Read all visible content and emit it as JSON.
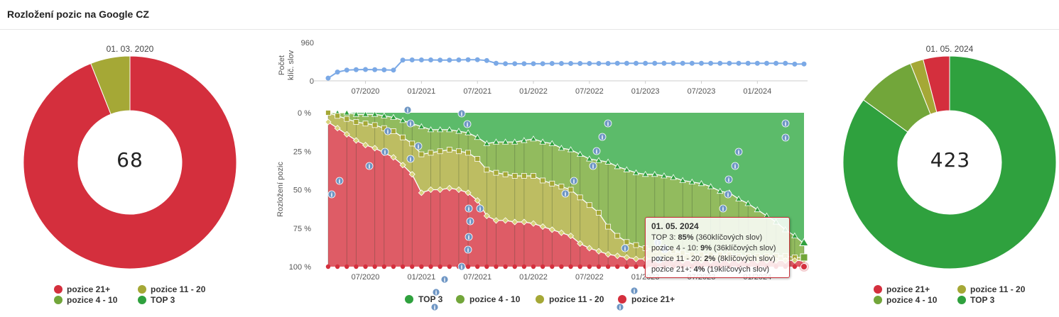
{
  "title": "Rozložení pozic na Google CZ",
  "colors": {
    "top3": "#2fa13e",
    "pos4_10": "#72a63a",
    "pos11_20": "#a5a836",
    "pos21": "#d42f3d",
    "line": "#7ba9e6",
    "info": "#6e96c4"
  },
  "left_donut": {
    "date": "01. 03. 2020",
    "total": "68",
    "legend": [
      {
        "label": "pozice 21+",
        "color": "#d42f3d"
      },
      {
        "label": "pozice 11 - 20",
        "color": "#a5a836"
      },
      {
        "label": "pozice 4 - 10",
        "color": "#72a63a"
      },
      {
        "label": "TOP 3",
        "color": "#2fa13e"
      }
    ]
  },
  "right_donut": {
    "date": "01. 05. 2024",
    "total": "423",
    "legend": [
      {
        "label": "pozice 21+",
        "color": "#d42f3d"
      },
      {
        "label": "pozice 11 - 20",
        "color": "#a5a836"
      },
      {
        "label": "pozice 4 - 10",
        "color": "#72a63a"
      },
      {
        "label": "TOP 3",
        "color": "#2fa13e"
      }
    ]
  },
  "main_legend": [
    {
      "label": "TOP 3",
      "color": "#2fa13e"
    },
    {
      "label": "pozice 4 - 10",
      "color": "#72a63a"
    },
    {
      "label": "pozice 11 - 20",
      "color": "#a5a836"
    },
    {
      "label": "pozice 21+",
      "color": "#d42f3d"
    }
  ],
  "tooltip": {
    "date": "01. 05. 2024",
    "lines": [
      {
        "prefix": "TOP 3: ",
        "value": "85%",
        "suffix": " (360klíčových slov)"
      },
      {
        "prefix": "pozice 4 - 10: ",
        "value": "9%",
        "suffix": " (36klíčových slov)"
      },
      {
        "prefix": "pozice 11 - 20: ",
        "value": "2%",
        "suffix": " (8klíčových slov)"
      },
      {
        "prefix": "pozice 21+: ",
        "value": "4%",
        "suffix": " (19klíčových slov)"
      }
    ]
  },
  "chart_data": [
    {
      "type": "pie",
      "name": "left",
      "categories": [
        "pozice 21+",
        "pozice 11 - 20",
        "pozice 4 - 10",
        "TOP 3"
      ],
      "values": [
        94,
        6,
        0,
        0
      ],
      "center_label": "68"
    },
    {
      "type": "pie",
      "name": "right",
      "categories": [
        "TOP 3",
        "pozice 4 - 10",
        "pozice 11 - 20",
        "pozice 21+"
      ],
      "values": [
        85,
        9,
        2,
        4
      ],
      "center_label": "423"
    },
    {
      "type": "line",
      "name": "keywords",
      "ylabel": "Počet klíč. slov",
      "ylim": [
        0,
        960
      ],
      "yticks": [
        "960",
        "0"
      ],
      "xticks": [
        "07/2020",
        "01/2021",
        "07/2021",
        "01/2022",
        "07/2022",
        "01/2023",
        "07/2023",
        "01/2024"
      ],
      "x_start": "2020-03",
      "x_end": "2024-05",
      "values": [
        68,
        220,
        270,
        280,
        285,
        280,
        275,
        270,
        520,
        525,
        525,
        525,
        520,
        520,
        525,
        530,
        530,
        510,
        440,
        430,
        430,
        430,
        430,
        430,
        435,
        435,
        435,
        435,
        435,
        435,
        435,
        440,
        440,
        440,
        440,
        440,
        440,
        440,
        440,
        440,
        440,
        440,
        440,
        440,
        440,
        440,
        440,
        440,
        440,
        440,
        420,
        423
      ]
    },
    {
      "type": "area",
      "name": "distribution",
      "ylabel": "Rozložení pozic",
      "yticks": [
        "0 %",
        "25 %",
        "50 %",
        "75 %",
        "100 %"
      ],
      "xticks": [
        "07/2020",
        "01/2021",
        "07/2021",
        "01/2022",
        "07/2022",
        "01/2023",
        "07/2023",
        "01/2024"
      ],
      "x_start": "2020-03",
      "x_end": "2024-05",
      "series": [
        {
          "name": "pozice 21+",
          "values": [
            94,
            90,
            86,
            82,
            79,
            77,
            74,
            71,
            66,
            60,
            48,
            50,
            50,
            51,
            50,
            48,
            43,
            33,
            30,
            30,
            29,
            29,
            28,
            26,
            24,
            22,
            20,
            15,
            12,
            10,
            8,
            7,
            6,
            5,
            5,
            5,
            5,
            5,
            4,
            4,
            4,
            4,
            4,
            4,
            4,
            4,
            4,
            4,
            4,
            4,
            4,
            4
          ]
        },
        {
          "name": "pozice 11 - 20",
          "values": [
            6,
            8,
            10,
            12,
            14,
            15,
            16,
            17,
            18,
            20,
            25,
            24,
            25,
            25,
            25,
            26,
            27,
            30,
            31,
            30,
            30,
            30,
            31,
            30,
            30,
            30,
            30,
            30,
            28,
            25,
            18,
            13,
            10,
            9,
            7,
            6,
            6,
            5,
            5,
            4,
            4,
            4,
            4,
            4,
            3,
            3,
            3,
            3,
            3,
            3,
            2,
            2
          ]
        },
        {
          "name": "pozice 4 - 10",
          "values": [
            0,
            2,
            4,
            5,
            6,
            7,
            8,
            9,
            11,
            13,
            18,
            15,
            14,
            13,
            13,
            13,
            14,
            17,
            20,
            21,
            22,
            23,
            24,
            25,
            26,
            25,
            26,
            28,
            30,
            34,
            42,
            45,
            47,
            47,
            48,
            49,
            48,
            48,
            47,
            47,
            46,
            44,
            41,
            40,
            37,
            34,
            30,
            26,
            22,
            17,
            14,
            9
          ]
        },
        {
          "name": "TOP 3",
          "values": [
            0,
            0,
            0,
            1,
            1,
            1,
            2,
            3,
            5,
            7,
            9,
            11,
            11,
            11,
            12,
            13,
            16,
            20,
            19,
            19,
            19,
            18,
            17,
            19,
            20,
            23,
            24,
            27,
            30,
            31,
            32,
            35,
            37,
            39,
            40,
            40,
            41,
            42,
            44,
            45,
            46,
            48,
            51,
            52,
            56,
            59,
            63,
            67,
            71,
            76,
            80,
            85
          ]
        }
      ]
    }
  ]
}
